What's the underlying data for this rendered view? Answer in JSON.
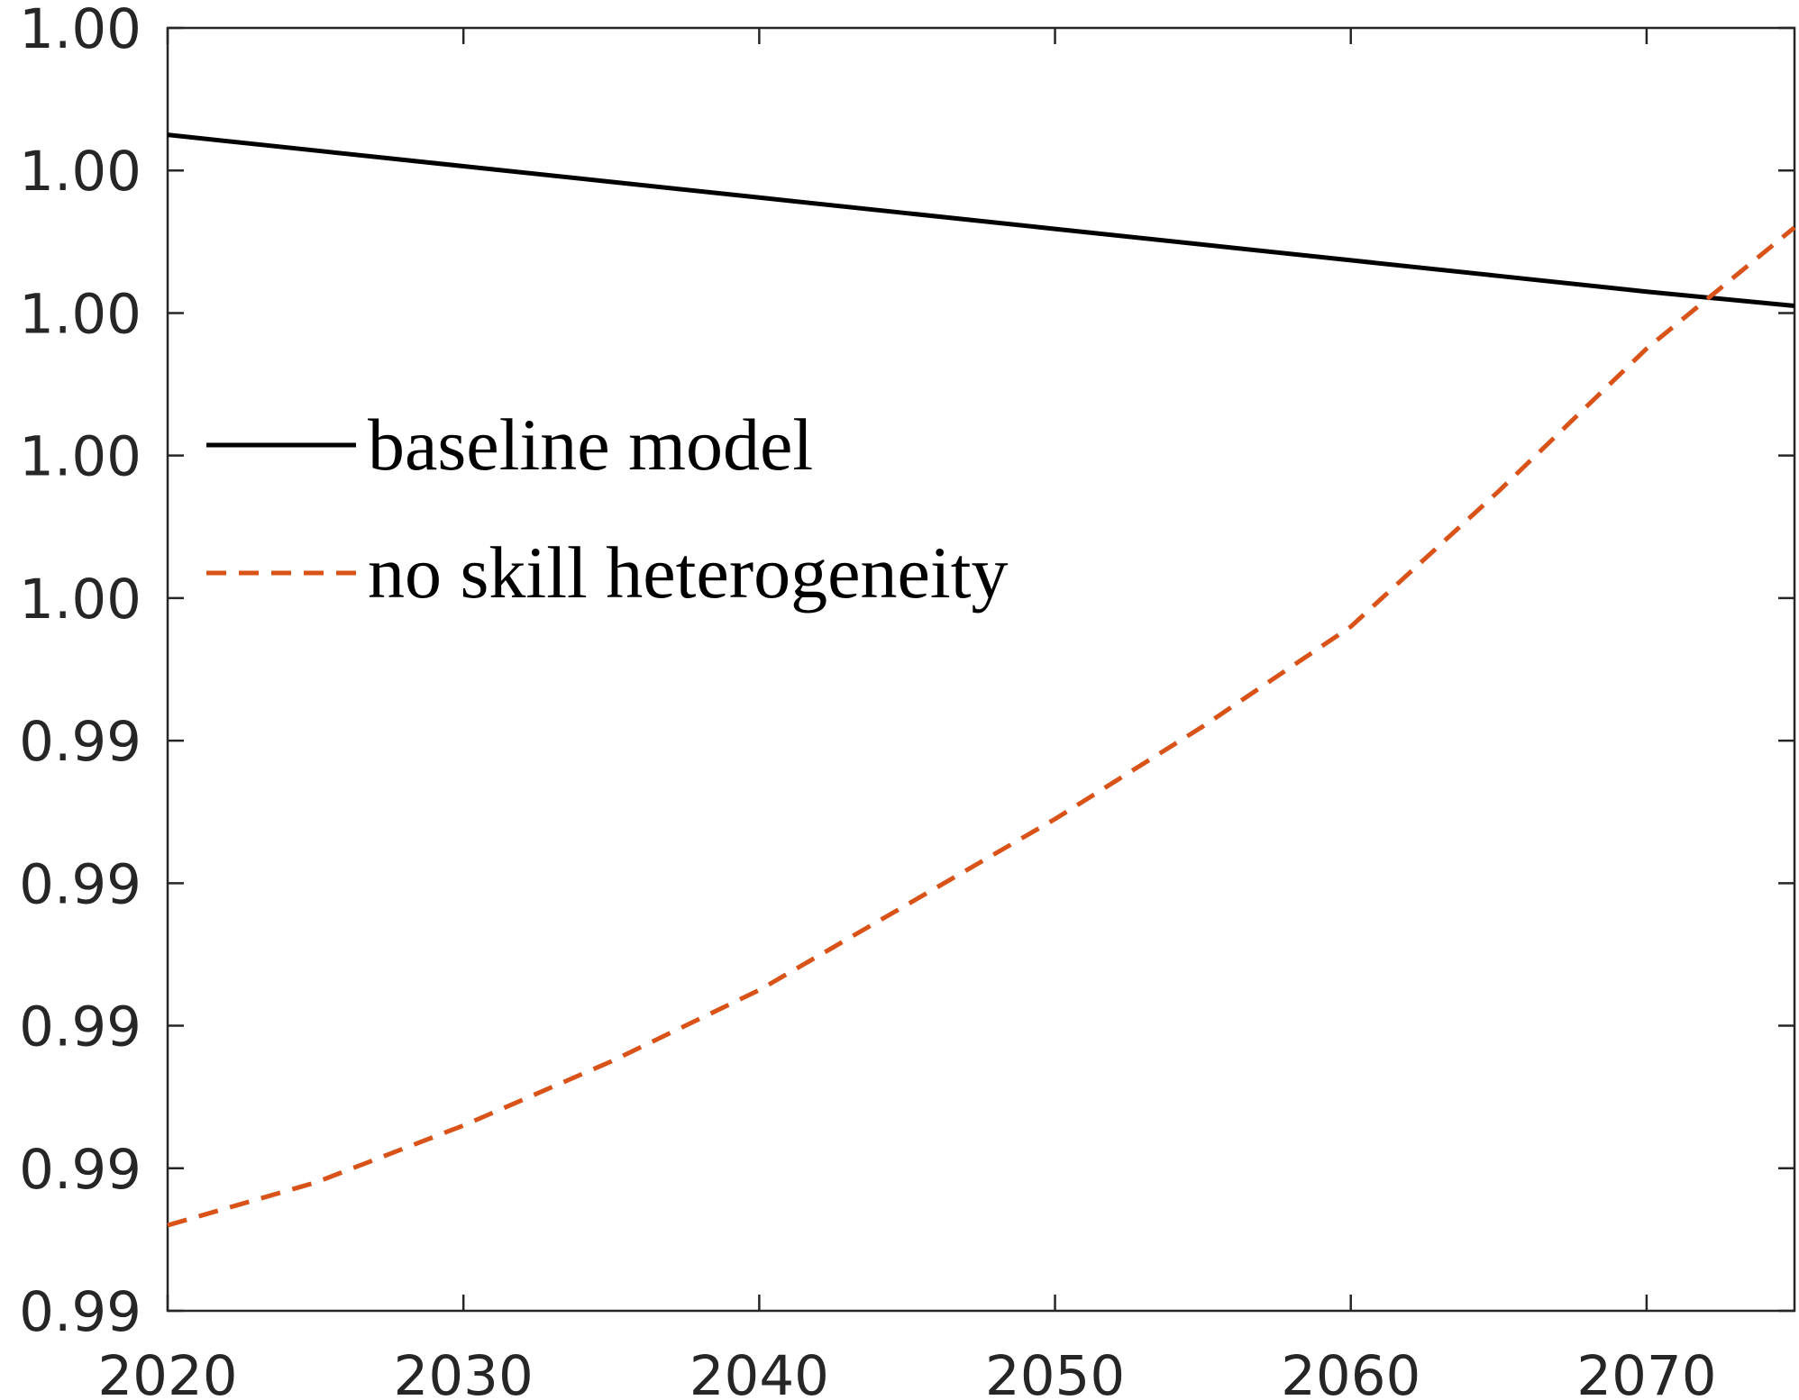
{
  "chart_data": {
    "type": "line",
    "x": [
      2020,
      2025,
      2030,
      2035,
      2040,
      2045,
      2050,
      2055,
      2060,
      2065,
      2070,
      2075
    ],
    "series": [
      {
        "name": "baseline model",
        "color": "#000000",
        "dash": "solid",
        "values": [
          0.99575,
          0.995728,
          0.995706,
          0.995684,
          0.995662,
          0.99564,
          0.995618,
          0.995596,
          0.995574,
          0.995552,
          0.99553,
          0.99551
        ]
      },
      {
        "name": "no skill heterogeneity",
        "color": "#d95319",
        "dash": "dashed",
        "values": [
          0.99422,
          0.99428,
          0.99436,
          0.99445,
          0.99455,
          0.99467,
          0.99479,
          0.99492,
          0.99506,
          0.99525,
          0.99545,
          0.99562
        ]
      }
    ],
    "xlim": [
      2020,
      2075
    ],
    "xticks": [
      2020,
      2030,
      2040,
      2050,
      2060,
      2070
    ],
    "ylim": [
      0.9941,
      0.9959
    ],
    "yticks": [
      {
        "value": 0.9941,
        "label": "0.99"
      },
      {
        "value": 0.9943,
        "label": "0.99"
      },
      {
        "value": 0.9945,
        "label": "0.99"
      },
      {
        "value": 0.9947,
        "label": "0.99"
      },
      {
        "value": 0.9949,
        "label": "0.99"
      },
      {
        "value": 0.9951,
        "label": "1.00"
      },
      {
        "value": 0.9953,
        "label": "1.00"
      },
      {
        "value": 0.9955,
        "label": "1.00"
      },
      {
        "value": 0.9957,
        "label": "1.00"
      },
      {
        "value": 0.9959,
        "label": "1.00"
      }
    ],
    "grid": false,
    "legend": "left"
  }
}
